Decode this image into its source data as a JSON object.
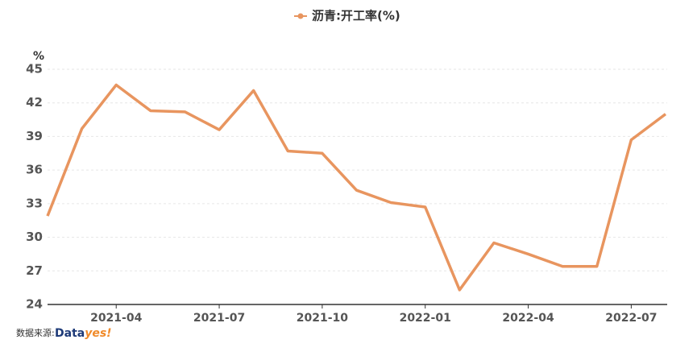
{
  "chart_data": {
    "type": "line",
    "y_unit": "%",
    "categories": [
      null,
      null,
      "2021-04",
      null,
      null,
      "2021-07",
      null,
      null,
      "2021-10",
      null,
      null,
      "2022-01",
      null,
      null,
      "2022-04",
      null,
      null,
      "2022-07",
      null
    ],
    "series": [
      {
        "name": "沥青:开工率(%)",
        "color": "#e8955f",
        "values": [
          31.9,
          39.7,
          43.6,
          41.3,
          41.2,
          39.6,
          43.1,
          37.7,
          37.5,
          34.2,
          33.1,
          32.7,
          25.3,
          29.5,
          28.5,
          27.4,
          27.4,
          38.7,
          41.0
        ]
      }
    ],
    "ylim": [
      24,
      45
    ],
    "yticks": [
      24,
      27,
      30,
      33,
      36,
      39,
      42,
      45
    ],
    "grid": true,
    "legend": "top",
    "source_label": "数据来源:",
    "source_logo": [
      "Data",
      "yes!"
    ]
  }
}
